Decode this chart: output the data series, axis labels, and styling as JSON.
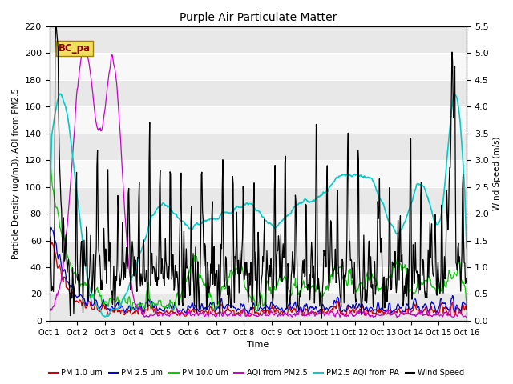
{
  "title": "Purple Air Particulate Matter",
  "xlabel": "Time",
  "ylabel_left": "Particle Density (ug/m3), AQI from PM2.5",
  "ylabel_right": "Wind Speed (m/s)",
  "ylim_left": [
    0,
    220
  ],
  "ylim_right": [
    0,
    5.5
  ],
  "yticks_left": [
    0,
    20,
    40,
    60,
    80,
    100,
    120,
    140,
    160,
    180,
    200,
    220
  ],
  "yticks_right": [
    0.0,
    0.5,
    1.0,
    1.5,
    2.0,
    2.5,
    3.0,
    3.5,
    4.0,
    4.5,
    5.0,
    5.5
  ],
  "xtick_labels": [
    "Oct 1",
    "Oct 2",
    "Oct 3",
    "Oct 4",
    "Oct 5",
    "Oct 6",
    "Oct 7",
    "Oct 8",
    "Oct 9",
    "Oct 10",
    "Oct 11",
    "Oct 12",
    "Oct 13",
    "Oct 14",
    "Oct 15",
    "Oct 16"
  ],
  "annotation_text": "BC_pa",
  "colors": {
    "PM1": "#cc0000",
    "PM25": "#0000cc",
    "PM10": "#00cc00",
    "AQI_PM25": "#cc00cc",
    "AQI_PA": "#00cccc",
    "Wind": "#000000"
  },
  "legend_labels": [
    "PM 1.0 um",
    "PM 2.5 um",
    "PM 10.0 um",
    "AQI from PM2.5",
    "PM2.5 AQI from PA",
    "Wind Speed"
  ],
  "background_color": "#ffffff",
  "plot_bg_color": "#f0f0f0",
  "band_colors": [
    "#e8e8e8",
    "#f8f8f8"
  ],
  "grid_color": "#ffffff",
  "n_points": 720,
  "wind_scale": 40.0,
  "figsize": [
    6.4,
    4.8
  ],
  "dpi": 100
}
